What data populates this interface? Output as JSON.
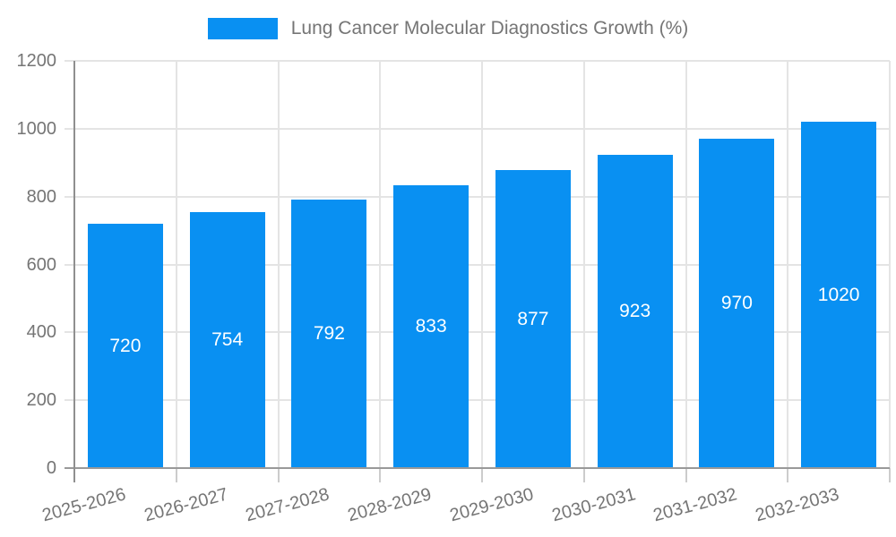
{
  "colors": {
    "bar": "#0990f2",
    "value_label": "#ffffff",
    "axis_line": "#8f8f8f",
    "baseline": "#999999",
    "gridline": "#e4e4e4",
    "label_text": "#757575"
  },
  "legend": {
    "label": "Lung Cancer Molecular Diagnostics Growth (%)"
  },
  "chart_data": {
    "type": "bar",
    "title": "Lung Cancer Molecular Diagnostics Growth (%)",
    "categories": [
      "2025-2026",
      "2026-2027",
      "2027-2028",
      "2028-2029",
      "2029-2030",
      "2030-2031",
      "2031-2032",
      "2032-2033"
    ],
    "series": [
      {
        "name": "Lung Cancer Molecular Diagnostics Growth (%)",
        "values": [
          720,
          754,
          792,
          833,
          877,
          923,
          970,
          1020
        ]
      }
    ],
    "xlabel": "",
    "ylabel": "",
    "ylim": [
      0,
      1200
    ],
    "yticks": [
      0,
      200,
      400,
      600,
      800,
      1000,
      1200
    ],
    "grid": true,
    "legend_position": "top-center",
    "value_labels": "inside-center",
    "x_label_rotation_deg": -15
  }
}
